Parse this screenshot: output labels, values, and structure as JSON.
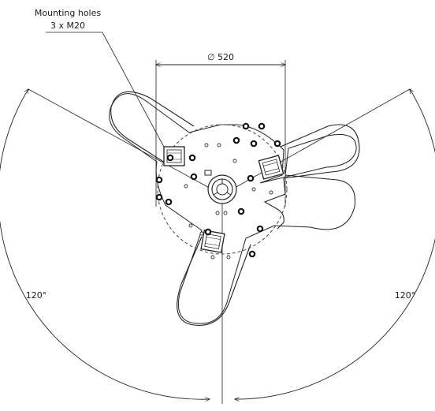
{
  "annotation": {
    "line1": "Mounting holes",
    "line2": "3 x M20"
  },
  "dimension": {
    "diameter": "∅ 520"
  },
  "angles": {
    "left": "120°",
    "right": "120°"
  },
  "colors": {
    "line": "#222222",
    "dashed": "#555555",
    "background": "#ffffff"
  },
  "icons": {
    "mounting_block": "mounting-block-icon",
    "center_hub": "center-hub-icon",
    "bolt_hole": "bolt-hole-icon"
  }
}
